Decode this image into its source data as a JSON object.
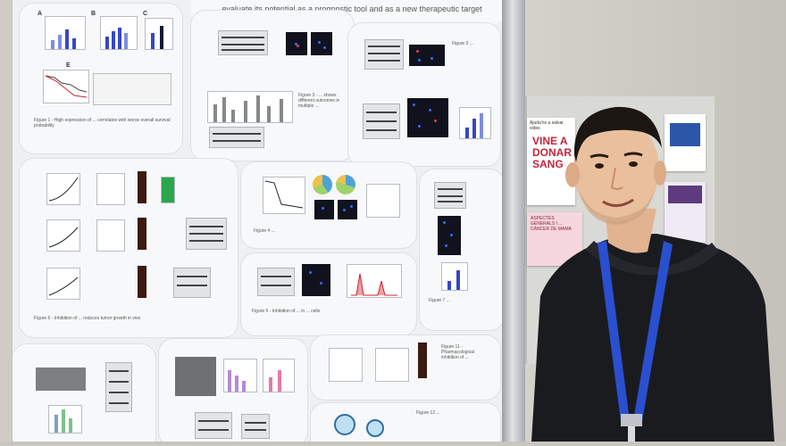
{
  "poster": {
    "title": "... evaluate its potential as a prognostic tool and as a new therapeutic target",
    "caption_blocks": [
      "Figure 1 - High expression of ... correlates with worse overall survival probability",
      "Figure 3 - ... shows different outcomes in multiple ...",
      "Figure 5 - Inhibition of ... in ... cells",
      "Figure 6 - Inhibition of ... reduces tumor growth in vivo",
      "Figure 11 - Pharmacological inhibition of ..."
    ],
    "panel_letters": [
      "A",
      "B",
      "C",
      "D",
      "E"
    ]
  },
  "board": {
    "flyer_donar": "VINE A\nDONAR\nSANG",
    "flyer_header": "Ajuda'ns a salvar vides",
    "flyer_pink": "ASPECTES GENERALS I ... CÀNCER DE MAMA"
  },
  "person": {
    "lanyard_color": "#2a4fd0",
    "shirt_color": "#1a1b1f"
  }
}
